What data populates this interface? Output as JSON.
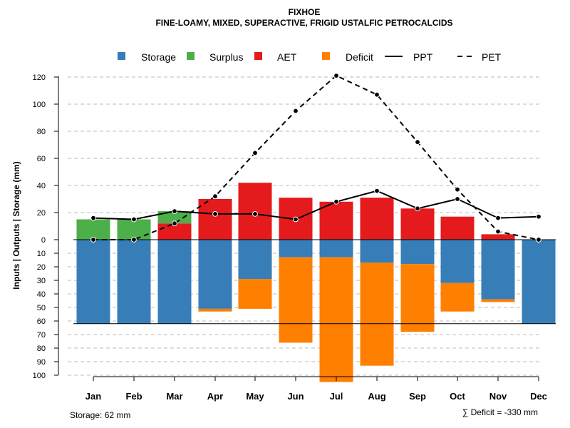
{
  "chart_data": {
    "type": "bar+line",
    "title": "FIXHOE",
    "subtitle": "FINE-LOAMY, MIXED, SUPERACTIVE, FRIGID USTALFIC PETROCALCIDS",
    "ylabel": "Inputs | Outputs | Storage    (mm)",
    "categories": [
      "Jan",
      "Feb",
      "Mar",
      "Apr",
      "May",
      "Jun",
      "Jul",
      "Aug",
      "Sep",
      "Oct",
      "Nov",
      "Dec"
    ],
    "upper_ticks": [
      "0",
      "20",
      "40",
      "60",
      "80",
      "100",
      "120"
    ],
    "upper_tick_values": [
      0,
      20,
      40,
      60,
      80,
      100,
      120
    ],
    "lower_ticks": [
      "10",
      "20",
      "30",
      "40",
      "50",
      "60",
      "70",
      "80",
      "90",
      "100"
    ],
    "lower_tick_values": [
      10,
      20,
      30,
      40,
      50,
      60,
      70,
      80,
      90,
      100
    ],
    "storage_capacity": 62,
    "series": [
      {
        "name": "Storage",
        "color": "#377eb8",
        "values": [
          62,
          62,
          62,
          51,
          29,
          13,
          13,
          17,
          18,
          32,
          44,
          62
        ]
      },
      {
        "name": "Surplus",
        "color": "#4daf4a",
        "values": [
          15,
          15,
          9,
          0,
          0,
          0,
          0,
          0,
          0,
          0,
          0,
          0
        ]
      },
      {
        "name": "AET",
        "color": "#e41a1c",
        "values": [
          0,
          0,
          12,
          30,
          42,
          31,
          28,
          31,
          23,
          17,
          4,
          0
        ]
      },
      {
        "name": "Deficit",
        "color": "#ff7f00",
        "values": [
          0,
          0,
          0,
          2,
          22,
          63,
          92,
          76,
          50,
          21,
          2,
          0
        ]
      },
      {
        "name": "PPT",
        "style": "solid",
        "values": [
          16,
          15,
          21,
          19,
          19,
          15,
          28,
          36,
          23,
          30,
          16,
          17
        ]
      },
      {
        "name": "PET",
        "style": "dashed",
        "values": [
          0,
          0,
          12,
          32,
          64,
          95,
          121,
          107,
          72,
          37,
          6,
          0
        ]
      }
    ],
    "legend": [
      {
        "label": "Storage",
        "kind": "box",
        "color": "#377eb8"
      },
      {
        "label": "Surplus",
        "kind": "box",
        "color": "#4daf4a"
      },
      {
        "label": "AET",
        "kind": "box",
        "color": "#e41a1c"
      },
      {
        "label": "Deficit",
        "kind": "box",
        "color": "#ff7f00"
      },
      {
        "label": "PPT",
        "kind": "line",
        "dash": "none"
      },
      {
        "label": "PET",
        "kind": "line",
        "dash": "dashed"
      }
    ],
    "legend_position": "top",
    "grid": true,
    "footer_left": "Storage: 62 mm",
    "footer_right": "∑ Deficit = -330 mm"
  }
}
